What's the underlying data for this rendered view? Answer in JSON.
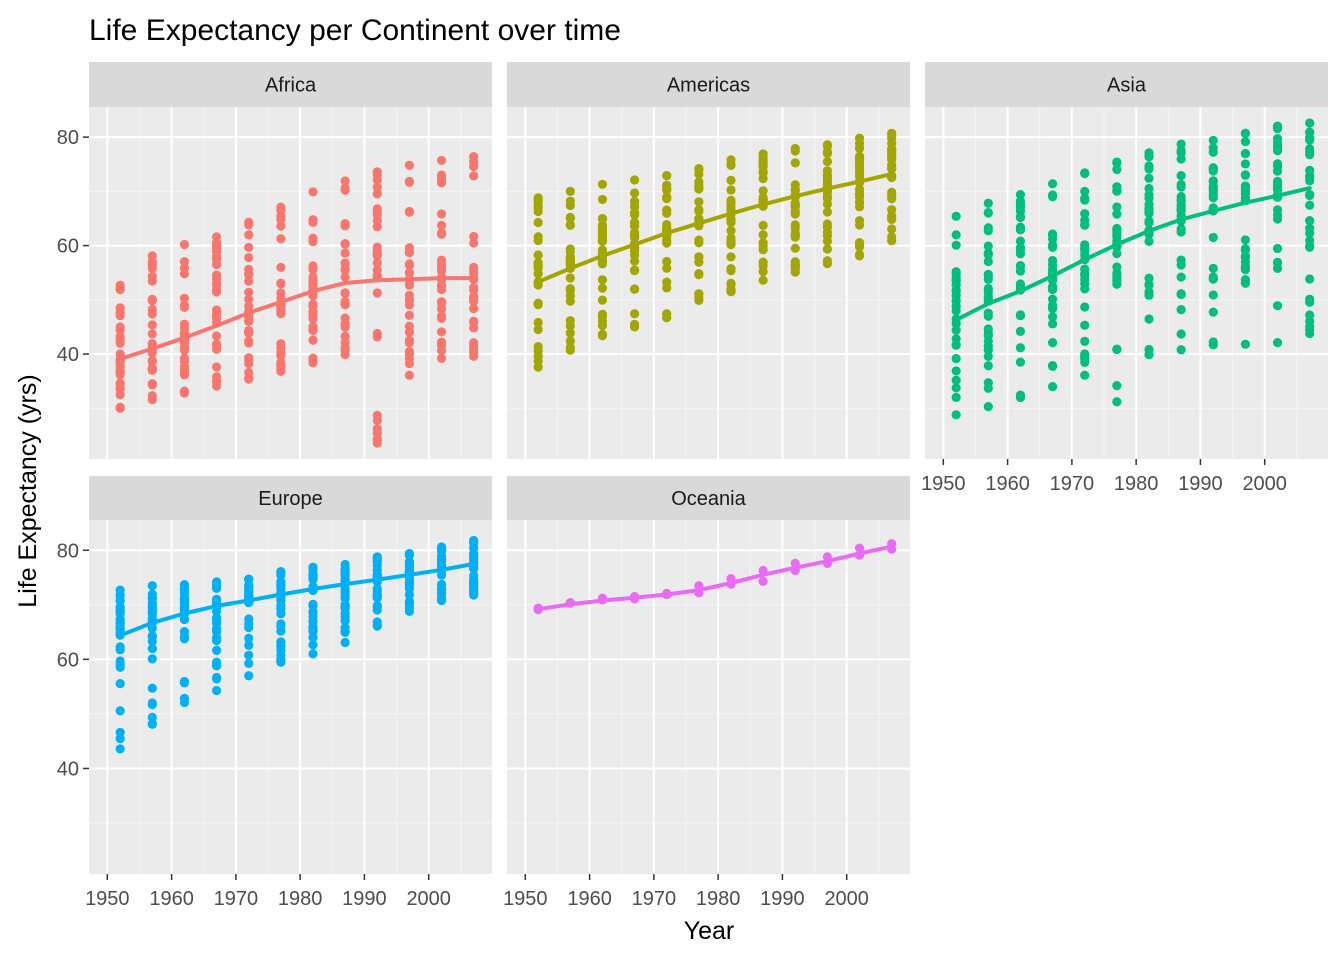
{
  "chart_data": {
    "type": "scatter",
    "title": "Life Expectancy per Continent over time",
    "xlabel": "Year",
    "ylabel": "Life Expectancy (yrs)",
    "xlim": [
      1950,
      2007
    ],
    "ylim": [
      23.6,
      82.6
    ],
    "x_ticks": [
      1950,
      1960,
      1970,
      1980,
      1990,
      2000
    ],
    "y_ticks": [
      40,
      60,
      80
    ],
    "grid": true,
    "legend": "none",
    "facets": [
      {
        "name": "Africa",
        "color": "#F8766D",
        "x": [
          1952,
          1957,
          1962,
          1967,
          1972,
          1977,
          1982,
          1987,
          1992,
          1997,
          2002,
          2007
        ],
        "y_min": [
          30.0,
          31.6,
          32.8,
          34.1,
          35.4,
          36.8,
          38.4,
          39.9,
          23.6,
          36.1,
          39.2,
          39.6
        ],
        "y_max": [
          52.7,
          58.1,
          60.2,
          61.6,
          64.3,
          67.1,
          69.9,
          71.9,
          73.6,
          74.8,
          75.7,
          76.4
        ],
        "smooth_y": [
          39.1,
          41.0,
          43.0,
          45.2,
          47.6,
          49.6,
          51.6,
          53.1,
          53.6,
          53.8,
          54.0,
          54.0
        ]
      },
      {
        "name": "Americas",
        "color": "#A3A500",
        "x": [
          1952,
          1957,
          1962,
          1967,
          1972,
          1977,
          1982,
          1987,
          1992,
          1997,
          2002,
          2007
        ],
        "y_min": [
          37.6,
          40.7,
          43.4,
          45.0,
          46.7,
          49.9,
          51.5,
          53.6,
          55.1,
          56.7,
          58.1,
          60.9
        ],
        "y_max": [
          68.8,
          70.0,
          71.3,
          72.1,
          72.9,
          74.2,
          75.8,
          76.9,
          77.9,
          78.6,
          79.8,
          80.7
        ],
        "smooth_y": [
          53.3,
          55.8,
          58.1,
          60.2,
          62.3,
          64.1,
          65.9,
          67.6,
          69.1,
          70.5,
          71.8,
          73.2
        ]
      },
      {
        "name": "Asia",
        "color": "#00BF7D",
        "x": [
          1952,
          1957,
          1962,
          1967,
          1972,
          1977,
          1982,
          1987,
          1992,
          1997,
          2002,
          2007
        ],
        "y_min": [
          28.8,
          30.3,
          32.0,
          34.0,
          36.1,
          31.2,
          39.9,
          40.8,
          41.7,
          41.8,
          42.1,
          43.8
        ],
        "y_max": [
          65.4,
          67.8,
          69.4,
          71.4,
          73.4,
          75.4,
          77.1,
          78.7,
          79.4,
          80.7,
          82.0,
          82.6
        ],
        "smooth_y": [
          46.3,
          49.3,
          51.6,
          54.4,
          57.4,
          60.2,
          62.7,
          64.8,
          66.4,
          67.9,
          69.2,
          70.6
        ]
      },
      {
        "name": "Europe",
        "color": "#00B0F6",
        "x": [
          1952,
          1957,
          1962,
          1967,
          1972,
          1977,
          1982,
          1987,
          1992,
          1997,
          2002,
          2007
        ],
        "y_min": [
          43.6,
          48.1,
          52.1,
          54.3,
          57.0,
          59.5,
          61.0,
          63.1,
          66.1,
          68.8,
          70.8,
          71.8
        ],
        "y_max": [
          72.7,
          73.5,
          73.7,
          74.2,
          74.7,
          76.1,
          76.9,
          77.4,
          78.8,
          79.4,
          80.6,
          81.8
        ],
        "smooth_y": [
          64.4,
          66.7,
          68.4,
          69.8,
          70.8,
          71.9,
          72.9,
          73.8,
          74.6,
          75.5,
          76.4,
          77.5
        ]
      },
      {
        "name": "Oceania",
        "color": "#E76BF3",
        "x": [
          1952,
          1957,
          1962,
          1967,
          1972,
          1977,
          1982,
          1987,
          1992,
          1997,
          2002,
          2007
        ],
        "y_min": [
          69.1,
          70.3,
          70.9,
          71.1,
          71.9,
          72.2,
          73.8,
          74.3,
          76.3,
          77.6,
          79.1,
          80.2
        ],
        "y_max": [
          69.4,
          70.4,
          71.2,
          71.5,
          72.1,
          73.5,
          74.8,
          76.3,
          77.6,
          78.8,
          80.4,
          81.2
        ],
        "smooth_y": [
          69.2,
          70.1,
          70.8,
          71.3,
          71.9,
          72.7,
          74.0,
          75.5,
          76.8,
          78.0,
          79.4,
          80.7
        ]
      }
    ]
  }
}
